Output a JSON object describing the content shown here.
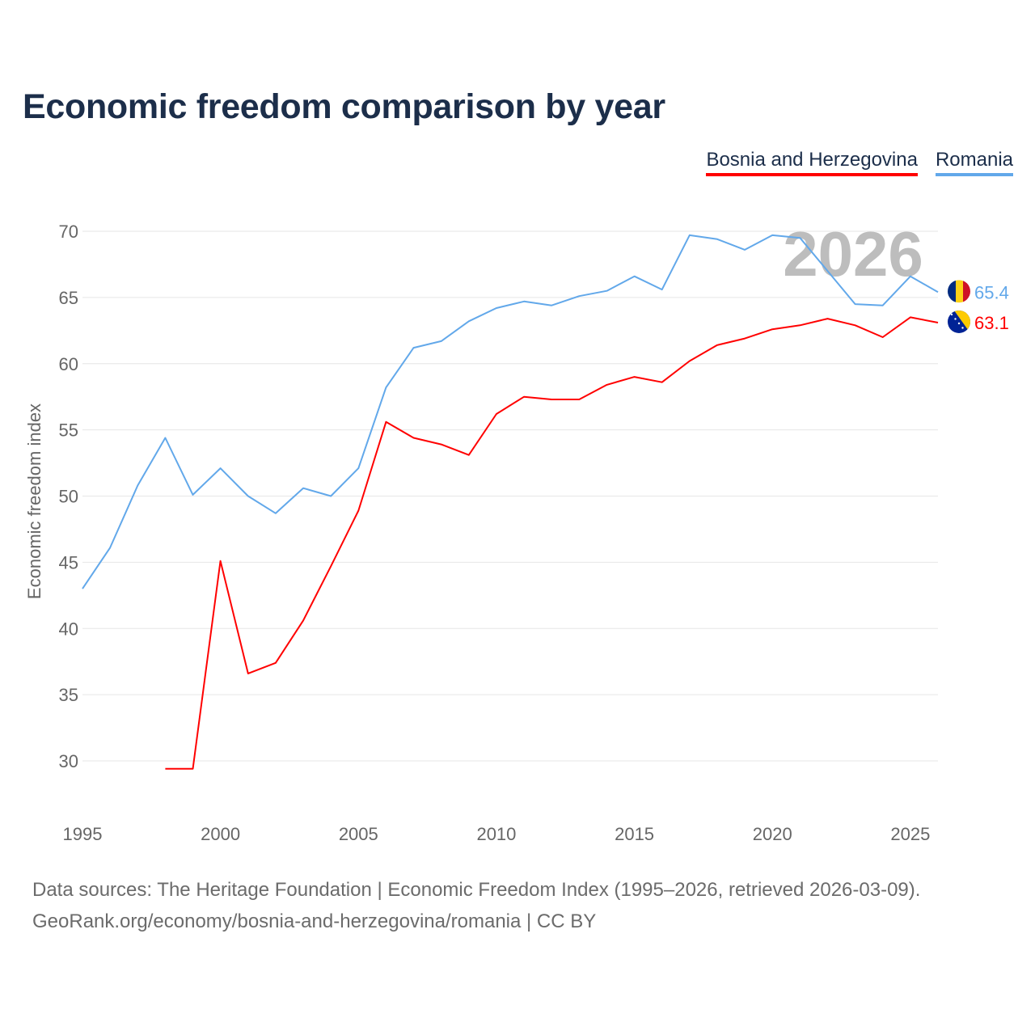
{
  "chart_data": {
    "type": "line",
    "title": "Economic freedom comparison by year",
    "xlabel": "",
    "ylabel": "Economic freedom index",
    "xlim": [
      1995,
      2026
    ],
    "ylim": [
      26,
      72
    ],
    "yticks": [
      30,
      35,
      40,
      45,
      50,
      55,
      60,
      65,
      70
    ],
    "xticks": [
      1995,
      2000,
      2005,
      2010,
      2015,
      2020,
      2025
    ],
    "grid": true,
    "legend_position": "top-right",
    "watermark_year": "2026",
    "series": [
      {
        "name": "Bosnia and Herzegovina",
        "color": "#ff0000",
        "end_label": "63.1",
        "flag": "bosnia-flag",
        "x": [
          1998,
          1999,
          2000,
          2001,
          2002,
          2003,
          2004,
          2005,
          2006,
          2007,
          2008,
          2009,
          2010,
          2011,
          2012,
          2013,
          2014,
          2015,
          2016,
          2017,
          2018,
          2019,
          2020,
          2021,
          2022,
          2023,
          2024,
          2025,
          2026
        ],
        "values": [
          29.4,
          29.4,
          45.1,
          36.6,
          37.4,
          40.6,
          44.7,
          48.9,
          55.6,
          54.4,
          53.9,
          53.1,
          56.2,
          57.5,
          57.3,
          57.3,
          58.4,
          59.0,
          58.6,
          60.2,
          61.4,
          61.9,
          62.6,
          62.9,
          63.4,
          62.9,
          62.0,
          63.5,
          63.1
        ]
      },
      {
        "name": "Romania",
        "color": "#62a8ea",
        "end_label": "65.4",
        "flag": "romania-flag",
        "x": [
          1995,
          1996,
          1997,
          1998,
          1999,
          2000,
          2001,
          2002,
          2003,
          2004,
          2005,
          2006,
          2007,
          2008,
          2009,
          2010,
          2011,
          2012,
          2013,
          2014,
          2015,
          2016,
          2017,
          2018,
          2019,
          2020,
          2021,
          2022,
          2023,
          2024,
          2025,
          2026
        ],
        "values": [
          43.0,
          46.1,
          50.8,
          54.4,
          50.1,
          52.1,
          50.0,
          48.7,
          50.6,
          50.0,
          52.1,
          58.2,
          61.2,
          61.7,
          63.2,
          64.2,
          64.7,
          64.4,
          65.1,
          65.5,
          66.6,
          65.6,
          69.7,
          69.4,
          68.6,
          69.7,
          69.5,
          67.0,
          64.5,
          64.4,
          66.6,
          65.4
        ]
      }
    ]
  },
  "footer": {
    "line1": "Data sources: The Heritage Foundation | Economic Freedom Index (1995–2026, retrieved 2026-03-09).",
    "line2": "GeoRank.org/economy/bosnia-and-herzegovina/romania | CC BY"
  }
}
